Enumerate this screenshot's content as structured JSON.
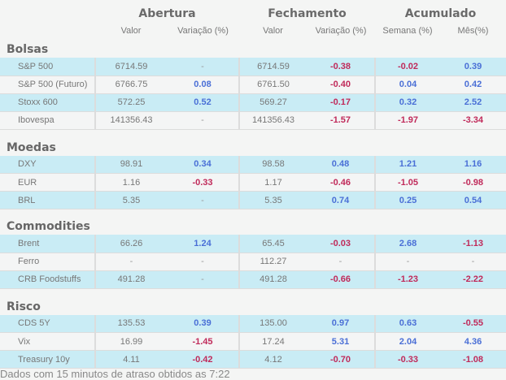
{
  "header": {
    "groups": [
      "Abertura",
      "Fechamento",
      "Acumulado"
    ],
    "columns": [
      "Valor",
      "Variação (%)",
      "Valor",
      "Variação (%)",
      "Semana (%)",
      "Mês(%)"
    ]
  },
  "colors": {
    "positive": "#4a6fd6",
    "negative": "#c02a5a",
    "row_highlight": "#c9ecf5"
  },
  "sections": [
    {
      "title": "Bolsas",
      "rows": [
        [
          "S&P 500",
          "6714.59",
          "-",
          "6714.59",
          "-0.38",
          "-0.02",
          "0.39"
        ],
        [
          "S&P 500 (Futuro)",
          "6766.75",
          "0.08",
          "6761.50",
          "-0.40",
          "0.04",
          "0.42"
        ],
        [
          "Stoxx 600",
          "572.25",
          "0.52",
          "569.27",
          "-0.17",
          "0.32",
          "2.52"
        ],
        [
          "Ibovespa",
          "141356.43",
          "-",
          "141356.43",
          "-1.57",
          "-1.97",
          "-3.34"
        ]
      ]
    },
    {
      "title": "Moedas",
      "rows": [
        [
          "DXY",
          "98.91",
          "0.34",
          "98.58",
          "0.48",
          "1.21",
          "1.16"
        ],
        [
          "EUR",
          "1.16",
          "-0.33",
          "1.17",
          "-0.46",
          "-1.05",
          "-0.98"
        ],
        [
          "BRL",
          "5.35",
          "-",
          "5.35",
          "0.74",
          "0.25",
          "0.54"
        ]
      ]
    },
    {
      "title": "Commodities",
      "rows": [
        [
          "Brent",
          "66.26",
          "1.24",
          "65.45",
          "-0.03",
          "2.68",
          "-1.13"
        ],
        [
          "Ferro",
          "-",
          "-",
          "112.27",
          "-",
          "-",
          "-"
        ],
        [
          "CRB Foodstuffs",
          "491.28",
          "-",
          "491.28",
          "-0.66",
          "-1.23",
          "-2.22"
        ]
      ]
    },
    {
      "title": "Risco",
      "rows": [
        [
          "CDS 5Y",
          "135.53",
          "0.39",
          "135.00",
          "0.97",
          "0.63",
          "-0.55"
        ],
        [
          "Vix",
          "16.99",
          "-1.45",
          "17.24",
          "5.31",
          "2.04",
          "4.36"
        ],
        [
          "Treasury 10y",
          "4.11",
          "-0.42",
          "4.12",
          "-0.70",
          "-0.33",
          "-1.08"
        ]
      ]
    }
  ],
  "footer": "Dados com 15 minutos de atraso obtidos as 7:22"
}
